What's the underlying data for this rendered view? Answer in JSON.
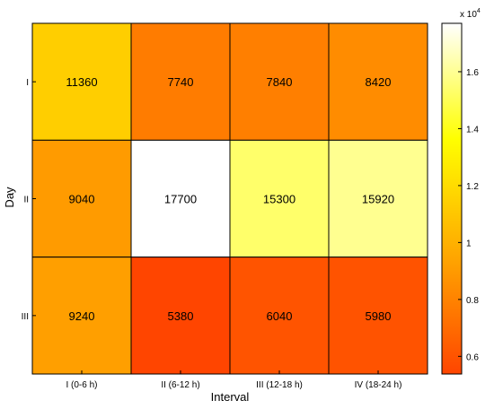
{
  "chart_data": {
    "type": "heatmap",
    "xlabel": "Interval",
    "ylabel": "Day",
    "x_categories": [
      "I (0-6 h)",
      "II (6-12 h)",
      "III (12-18 h)",
      "IV (18-24 h)"
    ],
    "y_categories": [
      "I",
      "II",
      "III"
    ],
    "values": [
      [
        11360,
        7740,
        7840,
        8420
      ],
      [
        9040,
        17700,
        15300,
        15920
      ],
      [
        9240,
        5380,
        6040,
        5980
      ]
    ],
    "colorbar": {
      "range": [
        5380,
        17700
      ],
      "tick_values": [
        0.6,
        0.8,
        1,
        1.2,
        1.4,
        1.6
      ],
      "tick_labels": [
        "0.6",
        "0.8",
        "1",
        "1.2",
        "1.4",
        "1.6"
      ],
      "multiplier_label": "x 10",
      "multiplier_exponent": "4",
      "colormap": "hot-reversed",
      "color_stops": [
        "#ff4500",
        "#ffa500",
        "#ffff00",
        "#ffffff"
      ]
    }
  }
}
